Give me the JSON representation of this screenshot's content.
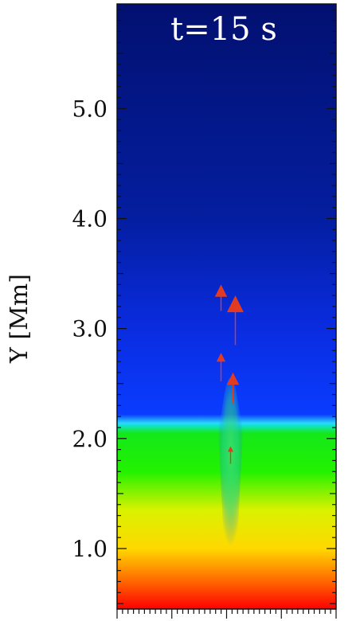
{
  "chart_data": {
    "type": "heatmap",
    "title": "t=15 s",
    "xlabel": "",
    "ylabel": "Y [Mm]",
    "ylim": [
      0.45,
      5.95
    ],
    "y_ticks": [
      {
        "value": 1.0,
        "label": "1.0"
      },
      {
        "value": 2.0,
        "label": "2.0"
      },
      {
        "value": 3.0,
        "label": "3.0"
      },
      {
        "value": 4.0,
        "label": "4.0"
      },
      {
        "value": 5.0,
        "label": "5.0"
      }
    ],
    "colorscale": [
      {
        "y": 0.45,
        "color": "#ff0000"
      },
      {
        "y": 0.75,
        "color": "#ff7a00"
      },
      {
        "y": 1.0,
        "color": "#ffd800"
      },
      {
        "y": 1.35,
        "color": "#d9f200"
      },
      {
        "y": 1.7,
        "color": "#22f200"
      },
      {
        "y": 2.05,
        "color": "#14e81a"
      },
      {
        "y": 2.12,
        "color": "#12e3d0"
      },
      {
        "y": 2.14,
        "color": "#2ad8ff"
      },
      {
        "y": 2.22,
        "color": "#0a3cff"
      },
      {
        "y": 3.0,
        "color": "#0a2ce0"
      },
      {
        "y": 4.0,
        "color": "#041ea0"
      },
      {
        "y": 5.95,
        "color": "#021070"
      }
    ],
    "transition_y": 2.14,
    "spicule": {
      "x": 0.0,
      "peak_y": 2.55,
      "color": "#3de06a"
    },
    "velocity_arrows": [
      {
        "x": -0.04,
        "y0": 3.16,
        "y1": 3.4,
        "size": "medium"
      },
      {
        "x": 0.02,
        "y0": 2.85,
        "y1": 3.3,
        "size": "large"
      },
      {
        "x": -0.04,
        "y0": 2.52,
        "y1": 2.78,
        "size": "small"
      },
      {
        "x": 0.01,
        "y0": 2.32,
        "y1": 2.6,
        "size": "medium"
      },
      {
        "x": 0.0,
        "y0": 1.77,
        "y1": 1.93,
        "size": "tiny"
      }
    ],
    "arrow_color": "#e23b22"
  }
}
